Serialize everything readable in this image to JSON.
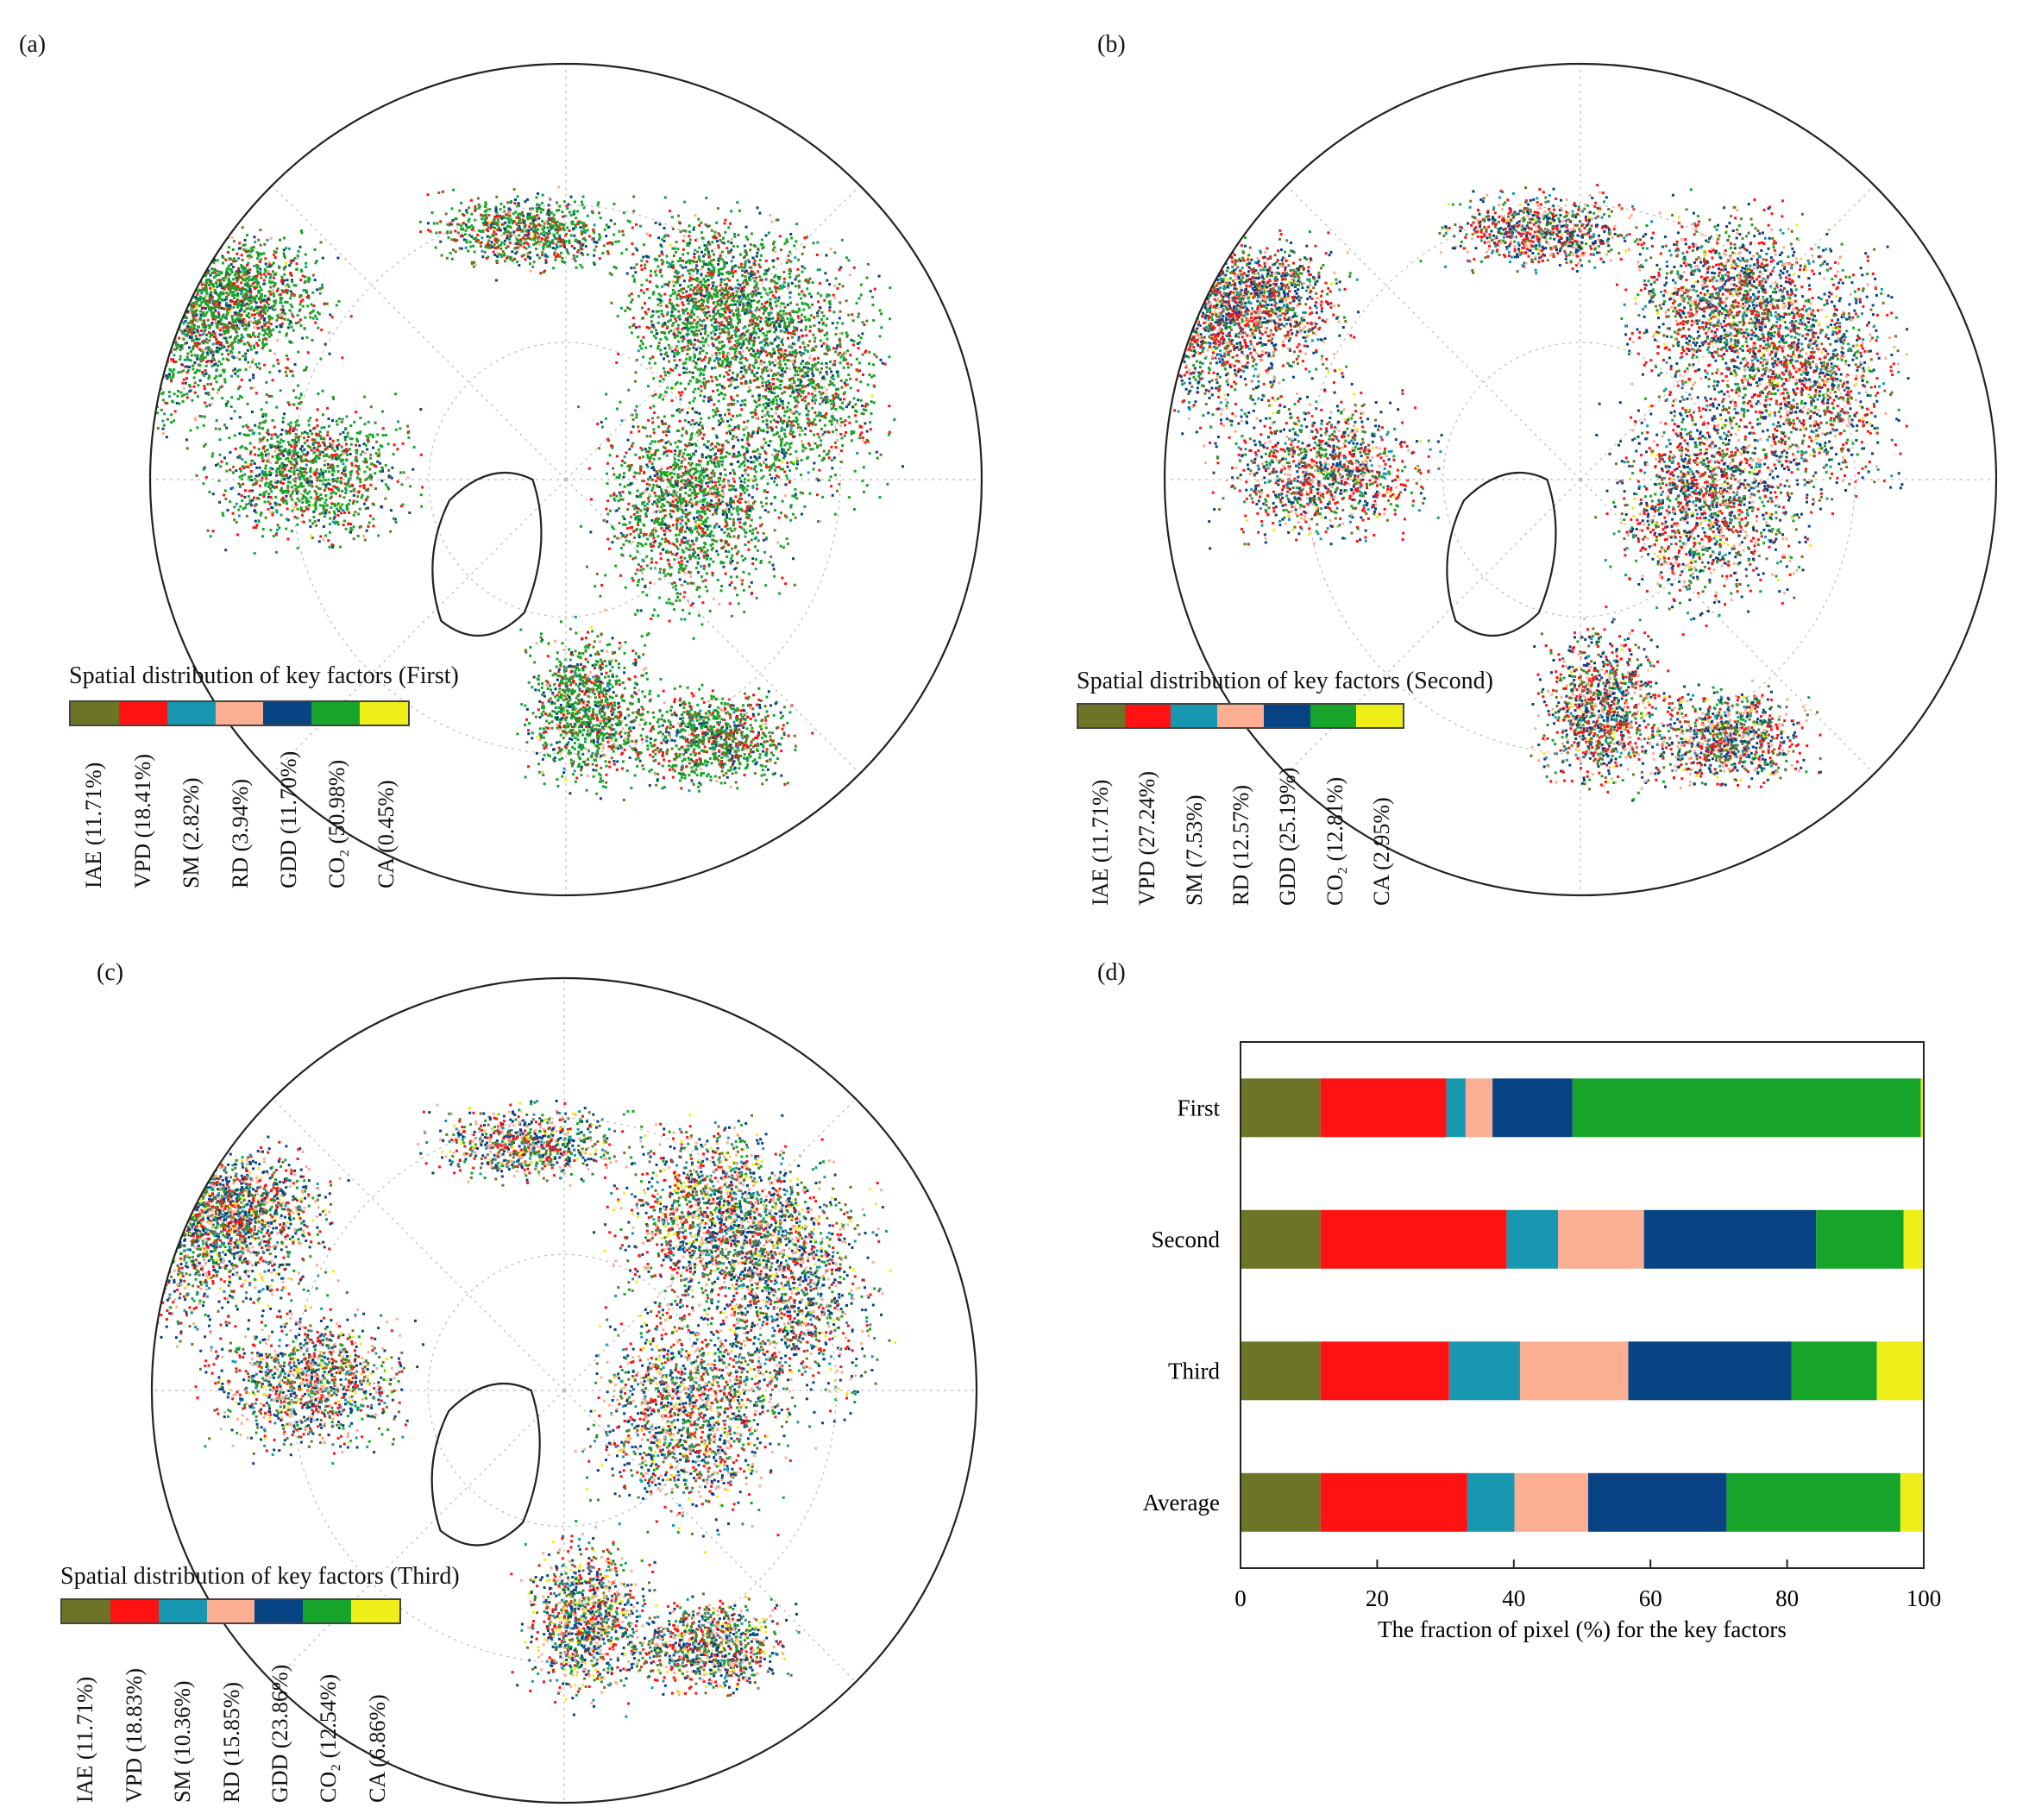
{
  "panels": [
    {
      "label": "(a)",
      "legend_title": "Spatial distribution of key factors (First)",
      "legend_labels": [
        "IAE (11.71%)",
        "VPD (18.41%)",
        "SM (2.82%)",
        "RD (3.94%)",
        "GDD (11.70%)",
        "CO₂ (50.98%)",
        "CA (0.45%)"
      ]
    },
    {
      "label": "(b)",
      "legend_title": "Spatial distribution of key factors (Second)",
      "legend_labels": [
        "IAE (11.71%)",
        "VPD (27.24%)",
        "SM (7.53%)",
        "RD (12.57%)",
        "GDD (25.19%)",
        "CO₂ (12.81%)",
        "CA (2.95%)"
      ]
    },
    {
      "label": "(c)",
      "legend_title": "Spatial distribution of key factors (Third)",
      "legend_labels": [
        "IAE (11.71%)",
        "VPD (18.83%)",
        "SM (10.36%)",
        "RD (15.85%)",
        "GDD (23.86%)",
        "CO₂ (12.54%)",
        "CA (6.86%)"
      ]
    },
    {
      "label": "(d)"
    }
  ],
  "colors": [
    "#6e7427",
    "#fe1212",
    "#1797b0",
    "#fbae92",
    "#084383",
    "#16a52a",
    "#eeee18"
  ],
  "chart_data": {
    "type": "bar",
    "orientation": "horizontal",
    "stacked": true,
    "categories": [
      "First",
      "Second",
      "Third",
      "Average"
    ],
    "series": [
      {
        "name": "IAE",
        "values": [
          11.71,
          11.71,
          11.71,
          11.71
        ]
      },
      {
        "name": "VPD",
        "values": [
          18.41,
          27.24,
          18.83,
          21.49
        ]
      },
      {
        "name": "SM",
        "values": [
          2.82,
          7.53,
          10.36,
          6.9
        ]
      },
      {
        "name": "RD",
        "values": [
          3.94,
          12.57,
          15.85,
          10.79
        ]
      },
      {
        "name": "GDD",
        "values": [
          11.7,
          25.19,
          23.86,
          20.25
        ]
      },
      {
        "name": "CO₂",
        "values": [
          50.98,
          12.81,
          12.54,
          25.44
        ]
      },
      {
        "name": "CA",
        "values": [
          0.45,
          2.95,
          6.86,
          3.42
        ]
      }
    ],
    "xlabel": "The fraction of pixel (%) for the key factors",
    "xlim": [
      0,
      100
    ],
    "xticks": [
      "0",
      "20",
      "40",
      "60",
      "80",
      "100"
    ]
  }
}
